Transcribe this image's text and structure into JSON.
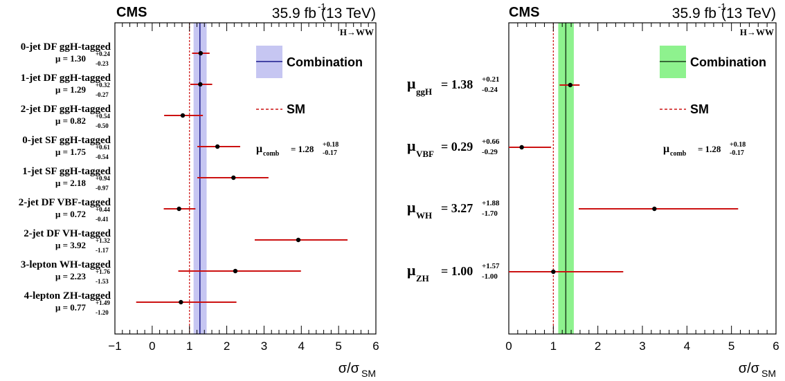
{
  "colors": {
    "left_band": "#c6c6f2",
    "left_line": "#1a1a8c",
    "right_band": "#8ef28e",
    "right_line": "#1a3d1a",
    "error_bar": "#cc1111",
    "sm_line": "#cc1111",
    "point": "#000000"
  },
  "chart_data": [
    {
      "type": "scatter",
      "experiment": "CMS",
      "luminosity": "35.9 fb",
      "lumi_exp": "-1",
      "energy": "(13 TeV)",
      "process": "H→WW",
      "xlabel": "σ/σ",
      "xlabel_sub": "SM",
      "xlim": [
        -1,
        6
      ],
      "ticks": [
        -1,
        0,
        1,
        2,
        3,
        4,
        5,
        6
      ],
      "legend": {
        "combination": "Combination",
        "sm": "SM"
      },
      "comb": {
        "label": "μ",
        "sub": "comb",
        "value": "= 1.28",
        "up": "+0.18",
        "down": "-0.17",
        "central": 1.28,
        "lo": 1.11,
        "hi": 1.46
      },
      "sm_value": 1.0,
      "categories": [
        {
          "name": "0-jet DF ggH-tagged",
          "mu": "μ = 1.30",
          "up": "+0.24",
          "down": "-0.23",
          "value": 1.3,
          "lo": 1.07,
          "hi": 1.54
        },
        {
          "name": "1-jet DF ggH-tagged",
          "mu": "μ = 1.29",
          "up": "+0.32",
          "down": "-0.27",
          "value": 1.29,
          "lo": 1.02,
          "hi": 1.61
        },
        {
          "name": "2-jet DF ggH-tagged",
          "mu": "μ = 0.82",
          "up": "+0.54",
          "down": "-0.50",
          "value": 0.82,
          "lo": 0.32,
          "hi": 1.36
        },
        {
          "name": "0-jet SF ggH-tagged",
          "mu": "μ = 1.75",
          "up": "+0.61",
          "down": "-0.54",
          "value": 1.75,
          "lo": 1.21,
          "hi": 2.36
        },
        {
          "name": "1-jet SF ggH-tagged",
          "mu": "μ = 2.18",
          "up": "+0.94",
          "down": "-0.97",
          "value": 2.18,
          "lo": 1.21,
          "hi": 3.12
        },
        {
          "name": "2-jet DF VBF-tagged",
          "mu": "μ = 0.72",
          "up": "+0.44",
          "down": "-0.41",
          "value": 0.72,
          "lo": 0.31,
          "hi": 1.16
        },
        {
          "name": "2-jet DF VH-tagged",
          "mu": "μ = 3.92",
          "up": "+1.32",
          "down": "-1.17",
          "value": 3.92,
          "lo": 2.75,
          "hi": 5.24
        },
        {
          "name": "3-lepton WH-tagged",
          "mu": "μ = 2.23",
          "up": "+1.76",
          "down": "-1.53",
          "value": 2.23,
          "lo": 0.7,
          "hi": 3.99
        },
        {
          "name": "4-lepton ZH-tagged",
          "mu": "μ = 0.77",
          "up": "+1.49",
          "down": "-1.20",
          "value": 0.77,
          "lo": -0.43,
          "hi": 2.26
        }
      ]
    },
    {
      "type": "scatter",
      "experiment": "CMS",
      "luminosity": "35.9 fb",
      "lumi_exp": "-1",
      "energy": "(13 TeV)",
      "process": "H→WW",
      "xlabel": "σ/σ",
      "xlabel_sub": "SM",
      "xlim": [
        0,
        6
      ],
      "ticks": [
        0,
        1,
        2,
        3,
        4,
        5,
        6
      ],
      "legend": {
        "combination": "Combination",
        "sm": "SM"
      },
      "comb": {
        "label": "μ",
        "sub": "comb",
        "value": "= 1.28",
        "up": "+0.18",
        "down": "-0.17",
        "central": 1.28,
        "lo": 1.11,
        "hi": 1.46
      },
      "sm_value": 1.0,
      "categories": [
        {
          "mu": "μ",
          "sub": "ggH",
          "val": "= 1.38",
          "up": "+0.21",
          "down": "-0.24",
          "value": 1.38,
          "lo": 1.14,
          "hi": 1.59
        },
        {
          "mu": "μ",
          "sub": "VBF",
          "val": "= 0.29",
          "up": "+0.66",
          "down": "-0.29",
          "value": 0.29,
          "lo": 0.0,
          "hi": 0.95
        },
        {
          "mu": "μ",
          "sub": "WH",
          "val": "= 3.27",
          "up": "+1.88",
          "down": "-1.70",
          "value": 3.27,
          "lo": 1.57,
          "hi": 5.15
        },
        {
          "mu": "μ",
          "sub": "ZH",
          "val": "= 1.00",
          "up": "+1.57",
          "down": "-1.00",
          "value": 1.0,
          "lo": 0.0,
          "hi": 2.57
        }
      ]
    }
  ]
}
